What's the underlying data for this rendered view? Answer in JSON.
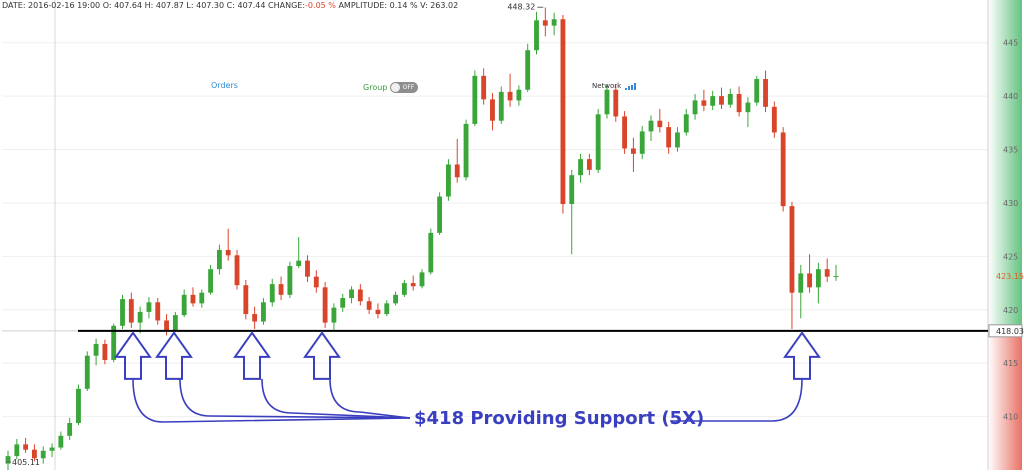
{
  "info_bar": {
    "date": "DATE: 2016-02-16  19:00",
    "open": "O: 407.64",
    "high": "H: 407.87",
    "low": "L: 407.30",
    "close": "C: 407.44",
    "change_label": "CHANGE:",
    "change_value": "-0.05 %",
    "amplitude": "AMPLITUDE: 0.14 %",
    "volume": "V: 263.02"
  },
  "overlay": {
    "orders": "Orders",
    "group_label": "Group",
    "group_toggle": "OFF",
    "network_label": "Network"
  },
  "annotation": {
    "text": "$418 Providing Support (5X)",
    "color": "#3a3fc0"
  },
  "colors": {
    "up": "#3aa63a",
    "down": "#d9452b",
    "support_line": "#000000"
  },
  "chart_data": {
    "type": "candlestick",
    "y_axis": {
      "range": [
        405,
        449
      ],
      "ticks": [
        410,
        415,
        420,
        425,
        430,
        435,
        440,
        445
      ],
      "position": "right"
    },
    "markers": {
      "high": "448.32",
      "low": "405.11",
      "last_price": "423.15",
      "crosshair_price": "418.03"
    },
    "support_level": 418.03,
    "candles": [
      [
        405.6,
        406.8,
        405.0,
        406.3
      ],
      [
        406.3,
        407.9,
        406.0,
        407.4
      ],
      [
        407.4,
        408.0,
        406.6,
        406.9
      ],
      [
        406.9,
        407.4,
        405.8,
        406.1
      ],
      [
        406.1,
        407.2,
        405.6,
        406.8
      ],
      [
        406.8,
        407.5,
        406.2,
        407.1
      ],
      [
        407.1,
        408.6,
        406.9,
        408.2
      ],
      [
        408.2,
        409.9,
        407.8,
        409.4
      ],
      [
        409.4,
        413.0,
        409.2,
        412.6
      ],
      [
        412.6,
        416.1,
        412.4,
        415.7
      ],
      [
        415.7,
        417.3,
        414.8,
        416.8
      ],
      [
        416.8,
        417.2,
        414.9,
        415.3
      ],
      [
        415.3,
        418.7,
        415.1,
        418.5
      ],
      [
        418.5,
        421.4,
        418.2,
        421.0
      ],
      [
        421.0,
        421.6,
        418.3,
        418.8
      ],
      [
        418.8,
        420.3,
        417.8,
        419.8
      ],
      [
        419.8,
        421.2,
        419.2,
        420.7
      ],
      [
        420.7,
        421.1,
        418.6,
        419.0
      ],
      [
        419.0,
        419.6,
        417.6,
        418.1
      ],
      [
        418.1,
        419.8,
        417.9,
        419.5
      ],
      [
        419.5,
        421.9,
        419.3,
        421.4
      ],
      [
        421.4,
        422.1,
        420.3,
        420.6
      ],
      [
        420.6,
        421.9,
        420.2,
        421.6
      ],
      [
        421.6,
        424.2,
        421.4,
        423.8
      ],
      [
        423.8,
        426.1,
        423.3,
        425.6
      ],
      [
        425.6,
        427.6,
        424.6,
        425.1
      ],
      [
        425.1,
        425.6,
        421.9,
        422.3
      ],
      [
        422.3,
        422.8,
        419.1,
        419.6
      ],
      [
        419.6,
        420.3,
        418.2,
        418.9
      ],
      [
        418.9,
        421.1,
        418.6,
        420.7
      ],
      [
        420.7,
        422.9,
        420.3,
        422.4
      ],
      [
        422.4,
        423.1,
        420.9,
        421.4
      ],
      [
        421.4,
        424.5,
        421.1,
        424.1
      ],
      [
        424.1,
        426.8,
        423.9,
        424.6
      ],
      [
        424.6,
        425.1,
        422.6,
        423.1
      ],
      [
        423.1,
        423.7,
        421.6,
        422.1
      ],
      [
        422.1,
        422.6,
        418.3,
        418.8
      ],
      [
        418.8,
        420.6,
        418.0,
        420.2
      ],
      [
        420.2,
        421.5,
        419.8,
        421.1
      ],
      [
        421.1,
        422.2,
        420.6,
        421.9
      ],
      [
        421.9,
        422.4,
        420.4,
        420.8
      ],
      [
        420.8,
        421.2,
        419.6,
        420.0
      ],
      [
        420.0,
        420.6,
        419.2,
        419.6
      ],
      [
        419.6,
        420.9,
        419.4,
        420.6
      ],
      [
        420.6,
        421.7,
        420.4,
        421.4
      ],
      [
        421.4,
        422.8,
        421.2,
        422.5
      ],
      [
        422.5,
        423.2,
        421.8,
        422.2
      ],
      [
        422.2,
        423.8,
        422.0,
        423.5
      ],
      [
        423.5,
        427.6,
        423.3,
        427.2
      ],
      [
        427.2,
        431.0,
        427.0,
        430.6
      ],
      [
        430.6,
        434.1,
        430.2,
        433.6
      ],
      [
        433.6,
        436.0,
        431.9,
        432.4
      ],
      [
        432.4,
        437.8,
        432.1,
        437.4
      ],
      [
        437.4,
        442.4,
        437.2,
        441.9
      ],
      [
        441.9,
        442.6,
        439.2,
        439.7
      ],
      [
        439.7,
        440.3,
        436.8,
        437.7
      ],
      [
        437.7,
        440.9,
        437.4,
        440.4
      ],
      [
        440.4,
        442.1,
        439.0,
        439.6
      ],
      [
        439.6,
        441.0,
        439.1,
        440.6
      ],
      [
        440.6,
        444.9,
        440.4,
        444.3
      ],
      [
        444.3,
        447.9,
        443.9,
        447.1
      ],
      [
        447.1,
        448.3,
        445.6,
        446.6
      ],
      [
        446.6,
        447.8,
        445.7,
        447.2
      ],
      [
        447.2,
        447.6,
        429.0,
        429.9
      ],
      [
        429.9,
        433.1,
        425.2,
        432.6
      ],
      [
        432.6,
        434.6,
        431.9,
        434.1
      ],
      [
        434.1,
        434.6,
        432.6,
        433.1
      ],
      [
        433.1,
        438.8,
        432.8,
        438.3
      ],
      [
        438.3,
        441.1,
        437.9,
        440.6
      ],
      [
        440.6,
        441.0,
        437.6,
        438.1
      ],
      [
        438.1,
        438.6,
        434.6,
        435.1
      ],
      [
        435.1,
        436.1,
        432.9,
        434.6
      ],
      [
        434.6,
        437.2,
        434.1,
        436.7
      ],
      [
        436.7,
        438.2,
        435.8,
        437.7
      ],
      [
        437.7,
        438.8,
        436.6,
        437.1
      ],
      [
        437.1,
        437.6,
        434.6,
        435.2
      ],
      [
        435.2,
        437.1,
        434.8,
        436.6
      ],
      [
        436.6,
        438.8,
        436.3,
        438.3
      ],
      [
        438.3,
        440.2,
        437.8,
        439.6
      ],
      [
        439.6,
        440.6,
        438.6,
        439.1
      ],
      [
        439.1,
        440.5,
        438.7,
        440.0
      ],
      [
        440.0,
        440.8,
        438.8,
        439.2
      ],
      [
        439.2,
        440.7,
        438.9,
        440.2
      ],
      [
        440.2,
        440.9,
        438.1,
        438.5
      ],
      [
        438.5,
        439.9,
        437.1,
        439.4
      ],
      [
        439.4,
        441.9,
        439.1,
        441.6
      ],
      [
        441.6,
        442.4,
        438.5,
        439.0
      ],
      [
        439.0,
        439.5,
        436.1,
        436.6
      ],
      [
        436.6,
        437.1,
        429.2,
        429.7
      ],
      [
        429.7,
        430.1,
        418.2,
        421.6
      ],
      [
        421.6,
        424.2,
        419.2,
        423.4
      ],
      [
        423.4,
        425.2,
        421.6,
        422.1
      ],
      [
        422.1,
        424.4,
        420.6,
        423.8
      ],
      [
        423.8,
        424.8,
        422.6,
        423.1
      ],
      [
        423.1,
        424.2,
        422.7,
        423.15
      ]
    ]
  }
}
